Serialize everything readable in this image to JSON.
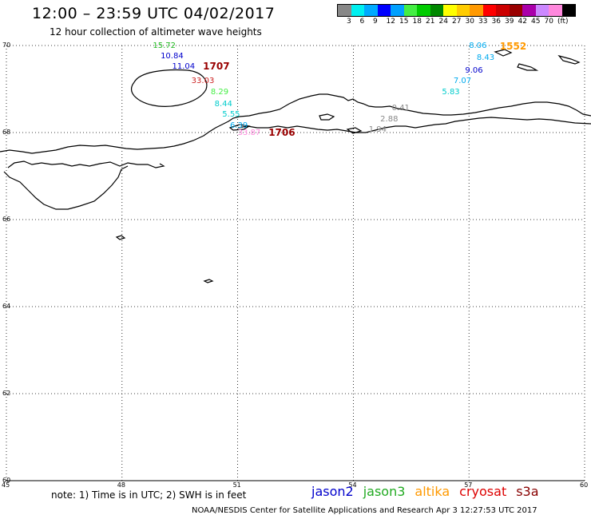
{
  "header": {
    "title": "12:00 – 23:59 UTC 04/02/2017",
    "subtitle": "12 hour collection of altimeter wave heights"
  },
  "legend": {
    "colors": [
      "#888888",
      "#00f0f0",
      "#00aaff",
      "#0000ff",
      "#00a0ff",
      "#44ee44",
      "#00cc00",
      "#008800",
      "#ffff00",
      "#ffcc00",
      "#ff9900",
      "#ff0000",
      "#cc0000",
      "#990000",
      "#aa00aa",
      "#cc88ff",
      "#ff88dd",
      "#000000"
    ],
    "labels": [
      "3",
      "6",
      "9",
      "12",
      "15",
      "18",
      "21",
      "24",
      "27",
      "30",
      "33",
      "36",
      "39",
      "42",
      "45",
      "70",
      "(ft)"
    ]
  },
  "axes": {
    "lon_labels": [
      "45",
      "48",
      "51",
      "54",
      "57",
      "60"
    ],
    "lat_labels": [
      "70",
      "68",
      "66",
      "64",
      "62",
      "60"
    ]
  },
  "swh_labels": [
    {
      "text": "15.72",
      "color": "#22bb22",
      "lon": 48.8,
      "lat": 69.98
    },
    {
      "text": "10.84",
      "color": "#0000cc",
      "lon": 49.0,
      "lat": 69.75
    },
    {
      "text": "11.04",
      "color": "#0000cc",
      "lon": 49.3,
      "lat": 69.5
    },
    {
      "text": "33.03",
      "color": "#cc2222",
      "lon": 49.8,
      "lat": 69.18
    },
    {
      "text": "8.29",
      "color": "#44ee44",
      "lon": 50.3,
      "lat": 68.92
    },
    {
      "text": "8.44",
      "color": "#00cccc",
      "lon": 50.4,
      "lat": 68.65
    },
    {
      "text": "5.55",
      "color": "#00cccc",
      "lon": 50.6,
      "lat": 68.4
    },
    {
      "text": "6.39",
      "color": "#00aaee",
      "lon": 50.8,
      "lat": 68.15
    },
    {
      "text": "33.87",
      "color": "#ff88dd",
      "lon": 51.0,
      "lat": 67.98
    },
    {
      "text": "8.06",
      "color": "#00aaee",
      "lon": 57.0,
      "lat": 69.98
    },
    {
      "text": "8.43",
      "color": "#00aaee",
      "lon": 57.2,
      "lat": 69.7
    },
    {
      "text": "9.06",
      "color": "#0000cc",
      "lon": 56.9,
      "lat": 69.42
    },
    {
      "text": "7.07",
      "color": "#00aaee",
      "lon": 56.6,
      "lat": 69.18
    },
    {
      "text": "5.83",
      "color": "#00cccc",
      "lon": 56.3,
      "lat": 68.92
    },
    {
      "text": "0.41",
      "color": "#888888",
      "lon": 55.0,
      "lat": 68.55
    },
    {
      "text": "2.88",
      "color": "#888888",
      "lon": 54.7,
      "lat": 68.3
    },
    {
      "text": "1.94",
      "color": "#888888",
      "lon": 54.4,
      "lat": 68.05
    }
  ],
  "time_labels": [
    {
      "text": "1707",
      "color": "#990000",
      "lon": 50.1,
      "lat": 69.52
    },
    {
      "text": "1706",
      "color": "#990000",
      "lon": 51.8,
      "lat": 68.0
    },
    {
      "text": "1552",
      "color": "#ff9900",
      "lon": 57.8,
      "lat": 69.98
    }
  ],
  "note": "note: 1) Time is in UTC; 2) SWH is in feet",
  "satellites": [
    {
      "name": "jason2",
      "color": "#0000cc"
    },
    {
      "name": "jason3",
      "color": "#22aa22"
    },
    {
      "name": "altika",
      "color": "#ff9900"
    },
    {
      "name": "cryosat",
      "color": "#dd0000"
    },
    {
      "name": "s3a",
      "color": "#880000"
    }
  ],
  "credit": "NOAA/NESDIS Center for Satellite Applications and Research   Apr  3 12:27:53 UTC 2017"
}
